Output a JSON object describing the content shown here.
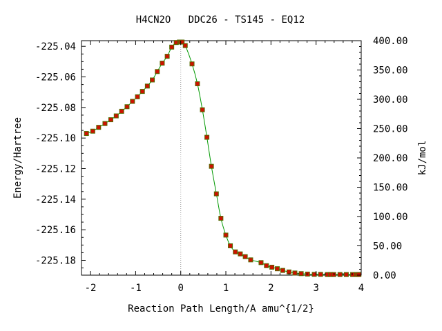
{
  "chart_data": {
    "type": "line",
    "title": "H4CN2O   DDC26 - TS145 - EQ12",
    "xlabel": "Reaction Path Length/A amu^{1/2}",
    "ylabel_left": "Energy/Hartree",
    "ylabel_right": "kJ/mol",
    "xlim": [
      -2.2,
      4.0
    ],
    "ylim_left": [
      -225.1897,
      -225.0363
    ],
    "ylim_right": [
      0,
      400
    ],
    "xticks": [
      -2,
      -1,
      0,
      1,
      2,
      3,
      4
    ],
    "xtick_labels": [
      "-2",
      "-1",
      "0",
      "1",
      "2",
      "3",
      "4"
    ],
    "yticks_left": [
      -225.04,
      -225.06,
      -225.08,
      -225.1,
      -225.12,
      -225.14,
      -225.16,
      -225.18
    ],
    "ytick_labels_left": [
      "-225.04",
      "-225.06",
      "-225.08",
      "-225.10",
      "-225.12",
      "-225.14",
      "-225.16",
      "-225.18"
    ],
    "yticks_right": [
      0,
      50,
      100,
      150,
      200,
      250,
      300,
      350,
      400
    ],
    "ytick_labels_right": [
      "0.00",
      "50.00",
      "100.00",
      "150.00",
      "200.00",
      "250.00",
      "300.00",
      "350.00",
      "400.00"
    ],
    "ts_marker_x": 0,
    "grid": false,
    "colors": {
      "line": "#009900",
      "point_fill": "#cc1100",
      "point_edge": "#556b00",
      "ts_line": "#999999",
      "axis": "#000000"
    },
    "series": [
      {
        "x": [
          -2.09,
          -1.95,
          -1.82,
          -1.68,
          -1.55,
          -1.43,
          -1.31,
          -1.19,
          -1.07,
          -0.96,
          -0.85,
          -0.74,
          -0.63,
          -0.52,
          -0.41,
          -0.3,
          -0.2,
          -0.1,
          -0.03,
          0.0,
          0.03,
          0.1,
          0.25,
          0.37,
          0.48,
          0.58,
          0.68,
          0.79,
          0.89,
          1.0,
          1.1,
          1.21,
          1.32,
          1.43,
          1.55,
          1.78,
          1.9,
          2.02,
          2.14,
          2.26,
          2.4,
          2.53,
          2.67,
          2.81,
          2.96,
          3.1,
          3.25,
          3.32,
          3.39,
          3.53,
          3.67,
          3.81,
          3.91,
          3.95
        ],
        "y": [
          -225.097,
          -225.0955,
          -225.093,
          -225.0905,
          -225.088,
          -225.0855,
          -225.0825,
          -225.0795,
          -225.076,
          -225.073,
          -225.0695,
          -225.066,
          -225.062,
          -225.0565,
          -225.051,
          -225.0465,
          -225.0405,
          -225.0375,
          -225.0372,
          -225.0372,
          -225.0372,
          -225.0395,
          -225.0515,
          -225.0645,
          -225.0815,
          -225.0995,
          -225.1185,
          -225.1365,
          -225.1525,
          -225.1635,
          -225.1705,
          -225.1745,
          -225.1758,
          -225.1776,
          -225.1797,
          -225.1815,
          -225.1835,
          -225.1845,
          -225.1855,
          -225.1866,
          -225.1876,
          -225.1883,
          -225.1887,
          -225.189,
          -225.1892,
          -225.1892,
          -225.1893,
          -225.1893,
          -225.1893,
          -225.1893,
          -225.1893,
          -225.1893,
          -225.1893,
          -225.1893
        ]
      }
    ]
  }
}
